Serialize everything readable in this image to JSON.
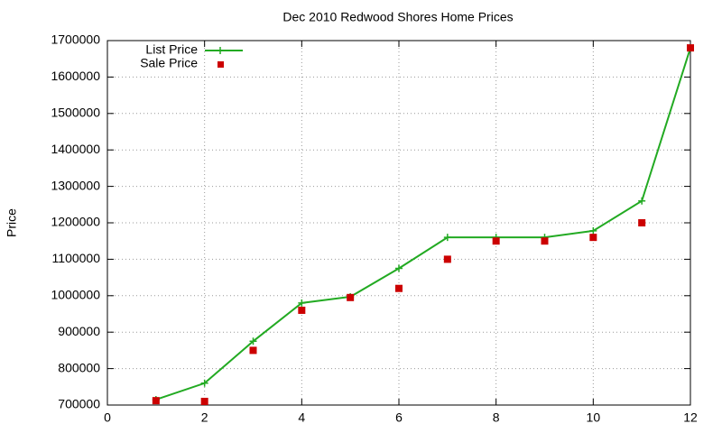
{
  "chart_data": {
    "type": "line",
    "title": "Dec 2010 Redwood Shores Home Prices",
    "y_label": "Price",
    "x": [
      1,
      2,
      3,
      4,
      5,
      6,
      7,
      8,
      9,
      10,
      11,
      12
    ],
    "series": [
      {
        "name": "List Price",
        "color": "#22aa22",
        "mode": "linespoints",
        "values": [
          715000,
          760000,
          875000,
          980000,
          997000,
          1075000,
          1160000,
          1160000,
          1160000,
          1178000,
          1260000,
          1680000
        ]
      },
      {
        "name": "Sale Price",
        "color": "#cc0000",
        "mode": "points",
        "values": [
          712000,
          710000,
          850000,
          960000,
          995000,
          1020000,
          1100000,
          1150000,
          1150000,
          1160000,
          1200000,
          1680000
        ]
      }
    ],
    "xlim": [
      0,
      12
    ],
    "xticks": [
      0,
      2,
      4,
      6,
      8,
      10,
      12
    ],
    "ylim": [
      700000,
      1700000
    ],
    "yticks": [
      700000,
      800000,
      900000,
      1000000,
      1100000,
      1200000,
      1300000,
      1400000,
      1500000,
      1600000,
      1700000
    ],
    "grid": true,
    "legend": "top-left"
  }
}
